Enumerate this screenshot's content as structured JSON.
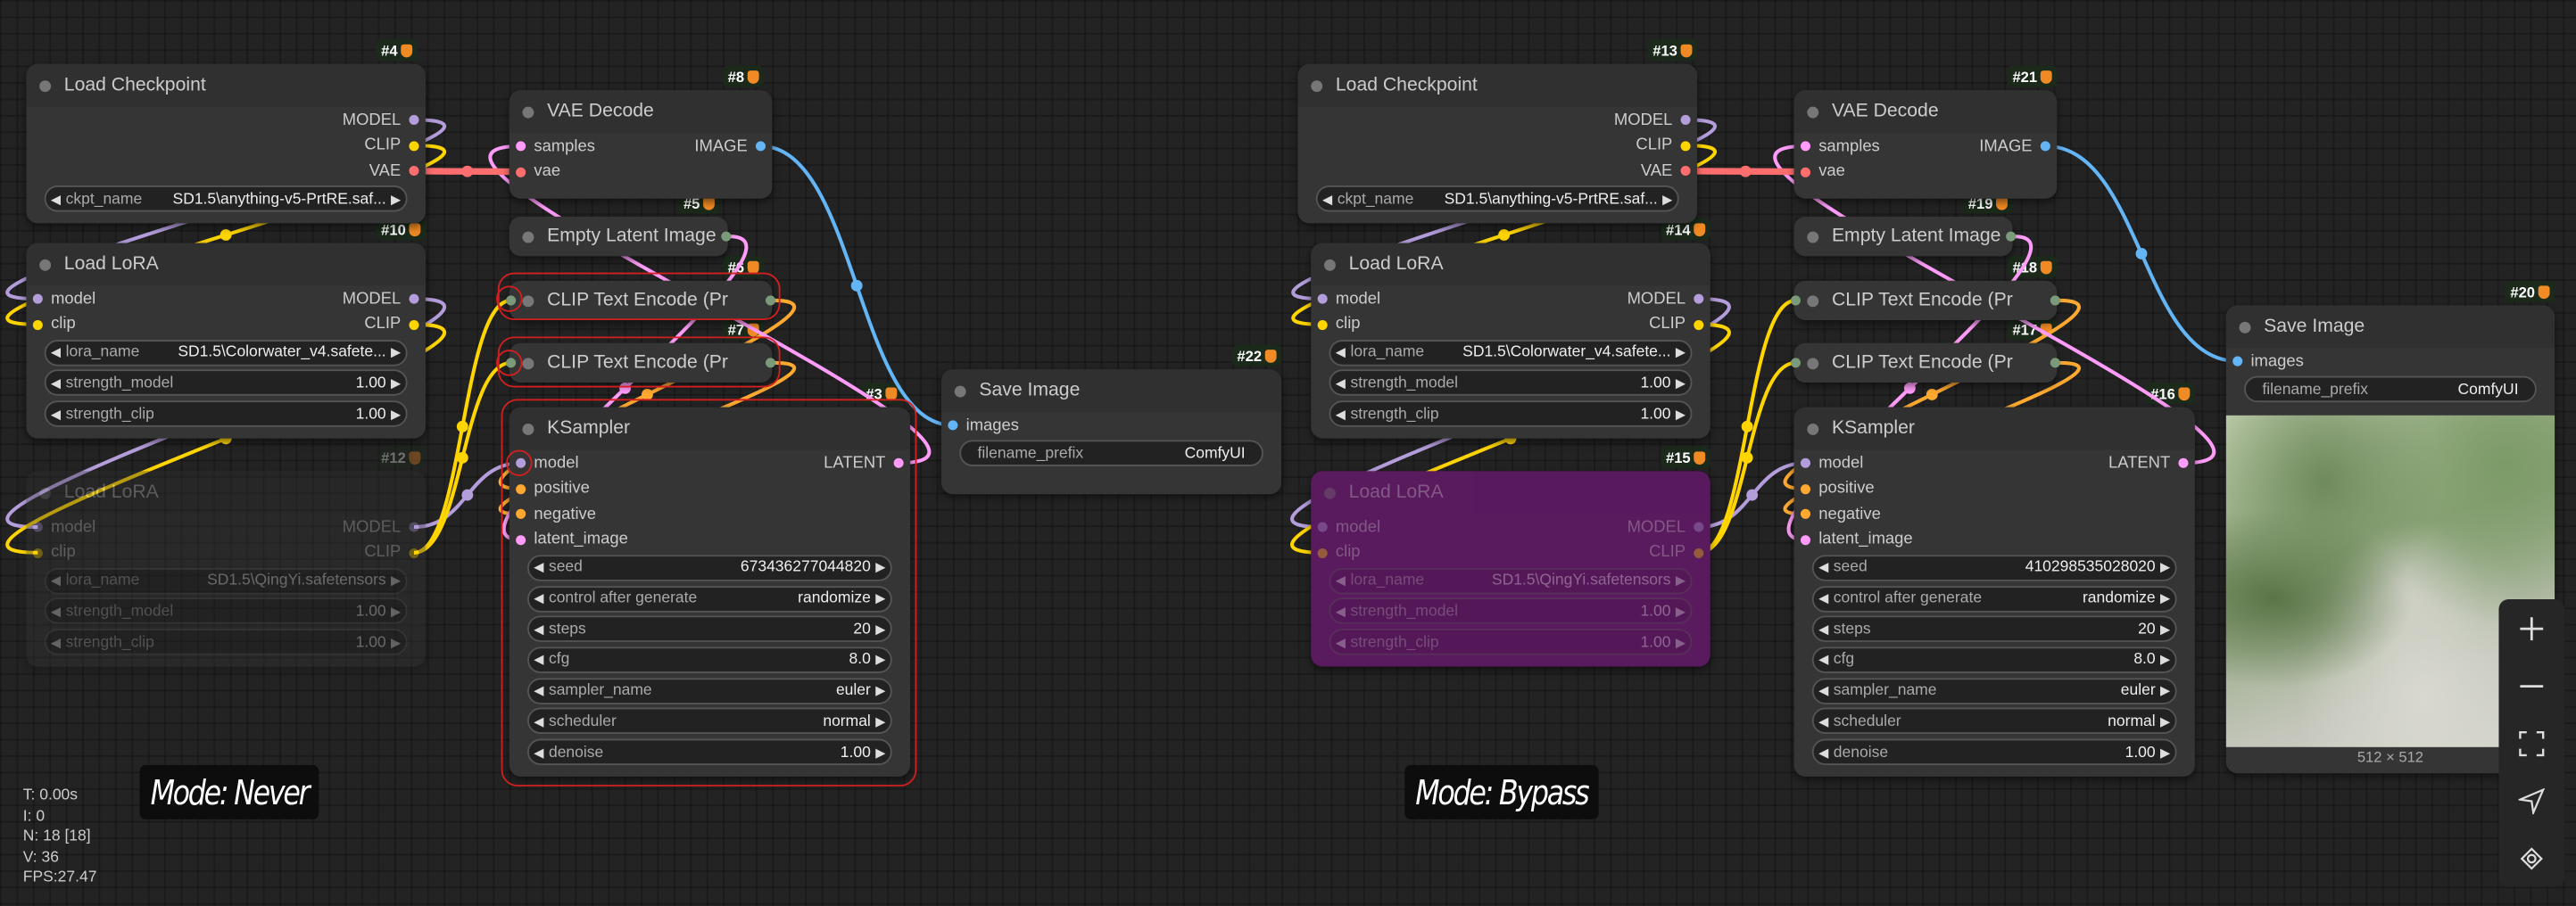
{
  "slot_colors": {
    "MODEL": "#b39ddb",
    "CLIP": "#ffd500",
    "VAE": "#ff6e6e",
    "LATENT": "#ff9cf9",
    "IMAGE": "#64b5f6",
    "CONDITIONING": "#ffa931",
    "NONE": "#7a9a7a"
  },
  "highlight_color": "#d21f1f",
  "bypass_color": "#5a1a5e",
  "nodes": [
    {
      "id": "10",
      "badge": "#10",
      "title": "Load LoRA",
      "mode": "always",
      "inputs": [
        {
          "label": "model",
          "type": "MODEL"
        },
        {
          "label": "clip",
          "type": "CLIP"
        }
      ],
      "outputs": [
        {
          "label": "MODEL",
          "type": "MODEL"
        },
        {
          "label": "CLIP",
          "type": "CLIP"
        }
      ],
      "widgets": [
        {
          "label": "lora_name",
          "value": "SD1.5\\Colorwater_v4.safete..."
        },
        {
          "label": "strength_model",
          "value": "1.00"
        },
        {
          "label": "strength_clip",
          "value": "1.00"
        }
      ]
    },
    {
      "id": "4",
      "badge": "#4",
      "title": "Load Checkpoint",
      "mode": "always",
      "inputs": [],
      "outputs": [
        {
          "label": "MODEL",
          "type": "MODEL"
        },
        {
          "label": "CLIP",
          "type": "CLIP"
        },
        {
          "label": "VAE",
          "type": "VAE"
        }
      ],
      "widgets": [
        {
          "label": "ckpt_name",
          "value": "SD1.5\\anything-v5-PrtRE.saf..."
        }
      ]
    },
    {
      "id": "12",
      "badge": "#12",
      "title": "Load LoRA",
      "mode": "never",
      "inputs": [
        {
          "label": "model",
          "type": "MODEL"
        },
        {
          "label": "clip",
          "type": "CLIP"
        }
      ],
      "outputs": [
        {
          "label": "MODEL",
          "type": "MODEL"
        },
        {
          "label": "CLIP",
          "type": "CLIP"
        }
      ],
      "widgets": [
        {
          "label": "lora_name",
          "value": "SD1.5\\QingYi.safetensors"
        },
        {
          "label": "strength_model",
          "value": "1.00"
        },
        {
          "label": "strength_clip",
          "value": "1.00"
        }
      ]
    },
    {
      "id": "8",
      "badge": "#8",
      "title": "VAE Decode",
      "mode": "always",
      "inputs": [
        {
          "label": "samples",
          "type": "LATENT"
        },
        {
          "label": "vae",
          "type": "VAE"
        }
      ],
      "outputs": [
        {
          "label": "IMAGE",
          "type": "IMAGE"
        }
      ],
      "widgets": []
    },
    {
      "id": "5",
      "badge": "#5",
      "title": "Empty Latent Image",
      "mode": "always",
      "collapsed": true,
      "inputs": [],
      "outputs": [
        {
          "label": "",
          "type": "NONE"
        }
      ],
      "widgets": []
    },
    {
      "id": "6",
      "badge": "#6",
      "title": "CLIP Text Encode (Pr",
      "mode": "always",
      "collapsed": true,
      "inputs": [
        {
          "label": "",
          "type": "NONE"
        }
      ],
      "outputs": [
        {
          "label": "",
          "type": "NONE"
        }
      ],
      "widgets": []
    },
    {
      "id": "7",
      "badge": "#7",
      "title": "CLIP Text Encode (Pr",
      "mode": "always",
      "collapsed": true,
      "inputs": [
        {
          "label": "",
          "type": "NONE"
        }
      ],
      "outputs": [
        {
          "label": "",
          "type": "NONE"
        }
      ],
      "widgets": []
    },
    {
      "id": "3",
      "badge": "#3",
      "title": "KSampler",
      "mode": "always",
      "inputs": [
        {
          "label": "model",
          "type": "MODEL"
        },
        {
          "label": "positive",
          "type": "CONDITIONING"
        },
        {
          "label": "negative",
          "type": "CONDITIONING"
        },
        {
          "label": "latent_image",
          "type": "LATENT"
        }
      ],
      "outputs": [
        {
          "label": "LATENT",
          "type": "LATENT"
        }
      ],
      "widgets": [
        {
          "label": "seed",
          "value": "673436277044820"
        },
        {
          "label": "control after generate",
          "value": "randomize"
        },
        {
          "label": "steps",
          "value": "20"
        },
        {
          "label": "cfg",
          "value": "8.0"
        },
        {
          "label": "sampler_name",
          "value": "euler"
        },
        {
          "label": "scheduler",
          "value": "normal"
        },
        {
          "label": "denoise",
          "value": "1.00"
        }
      ]
    },
    {
      "id": "22",
      "badge": "#22",
      "title": "Save Image",
      "mode": "always",
      "inputs": [
        {
          "label": "images",
          "type": "IMAGE"
        }
      ],
      "outputs": [],
      "widgets": [
        {
          "label": "filename_prefix",
          "value": "ComfyUI",
          "plain": true
        }
      ]
    },
    {
      "id": "14",
      "badge": "#14",
      "title": "Load LoRA",
      "mode": "always",
      "inputs": [
        {
          "label": "model",
          "type": "MODEL"
        },
        {
          "label": "clip",
          "type": "CLIP"
        }
      ],
      "outputs": [
        {
          "label": "MODEL",
          "type": "MODEL"
        },
        {
          "label": "CLIP",
          "type": "CLIP"
        }
      ],
      "widgets": [
        {
          "label": "lora_name",
          "value": "SD1.5\\Colorwater_v4.safete..."
        },
        {
          "label": "strength_model",
          "value": "1.00"
        },
        {
          "label": "strength_clip",
          "value": "1.00"
        }
      ]
    },
    {
      "id": "13",
      "badge": "#13",
      "title": "Load Checkpoint",
      "mode": "always",
      "inputs": [],
      "outputs": [
        {
          "label": "MODEL",
          "type": "MODEL"
        },
        {
          "label": "CLIP",
          "type": "CLIP"
        },
        {
          "label": "VAE",
          "type": "VAE"
        }
      ],
      "widgets": [
        {
          "label": "ckpt_name",
          "value": "SD1.5\\anything-v5-PrtRE.saf..."
        }
      ]
    },
    {
      "id": "15",
      "badge": "#15",
      "title": "Load LoRA",
      "mode": "bypass",
      "inputs": [
        {
          "label": "model",
          "type": "MODEL"
        },
        {
          "label": "clip",
          "type": "CLIP"
        }
      ],
      "outputs": [
        {
          "label": "MODEL",
          "type": "MODEL"
        },
        {
          "label": "CLIP",
          "type": "CLIP"
        }
      ],
      "widgets": [
        {
          "label": "lora_name",
          "value": "SD1.5\\QingYi.safetensors"
        },
        {
          "label": "strength_model",
          "value": "1.00"
        },
        {
          "label": "strength_clip",
          "value": "1.00"
        }
      ]
    },
    {
      "id": "21",
      "badge": "#21",
      "title": "VAE Decode",
      "mode": "always",
      "inputs": [
        {
          "label": "samples",
          "type": "LATENT"
        },
        {
          "label": "vae",
          "type": "VAE"
        }
      ],
      "outputs": [
        {
          "label": "IMAGE",
          "type": "IMAGE"
        }
      ],
      "widgets": []
    },
    {
      "id": "19",
      "badge": "#19",
      "title": "Empty Latent Image",
      "mode": "always",
      "collapsed": true,
      "inputs": [],
      "outputs": [
        {
          "label": "",
          "type": "NONE"
        }
      ],
      "widgets": []
    },
    {
      "id": "18",
      "badge": "#18",
      "title": "CLIP Text Encode (Pr",
      "mode": "always",
      "collapsed": true,
      "inputs": [
        {
          "label": "",
          "type": "NONE"
        }
      ],
      "outputs": [
        {
          "label": "",
          "type": "NONE"
        }
      ],
      "widgets": []
    },
    {
      "id": "17",
      "badge": "#17",
      "title": "CLIP Text Encode (Pr",
      "mode": "always",
      "collapsed": true,
      "inputs": [
        {
          "label": "",
          "type": "NONE"
        }
      ],
      "outputs": [
        {
          "label": "",
          "type": "NONE"
        }
      ],
      "widgets": []
    },
    {
      "id": "16",
      "badge": "#16",
      "title": "KSampler",
      "mode": "always",
      "inputs": [
        {
          "label": "model",
          "type": "MODEL"
        },
        {
          "label": "positive",
          "type": "CONDITIONING"
        },
        {
          "label": "negative",
          "type": "CONDITIONING"
        },
        {
          "label": "latent_image",
          "type": "LATENT"
        }
      ],
      "outputs": [
        {
          "label": "LATENT",
          "type": "LATENT"
        }
      ],
      "widgets": [
        {
          "label": "seed",
          "value": "410298535028020"
        },
        {
          "label": "control after generate",
          "value": "randomize"
        },
        {
          "label": "steps",
          "value": "20"
        },
        {
          "label": "cfg",
          "value": "8.0"
        },
        {
          "label": "sampler_name",
          "value": "euler"
        },
        {
          "label": "scheduler",
          "value": "normal"
        },
        {
          "label": "denoise",
          "value": "1.00"
        }
      ]
    },
    {
      "id": "20",
      "badge": "#20",
      "title": "Save Image",
      "mode": "always",
      "inputs": [
        {
          "label": "images",
          "type": "IMAGE"
        }
      ],
      "outputs": [],
      "widgets": [
        {
          "label": "filename_prefix",
          "value": "ComfyUI",
          "plain": true
        }
      ],
      "preview": {
        "caption": "512 × 512"
      }
    }
  ],
  "mode_labels": [
    "Mode: Never",
    "Mode: Bypass"
  ],
  "stats": [
    "T: 0.00s",
    "I: 0",
    "N: 18 [18]",
    "V: 36",
    "FPS:27.47"
  ],
  "toolbar": [
    "zoom-in",
    "zoom-out",
    "fit-view",
    "send",
    "eye"
  ]
}
